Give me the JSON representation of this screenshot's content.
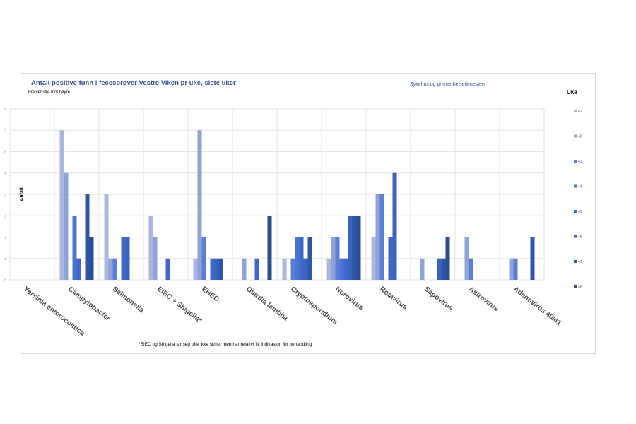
{
  "header": {
    "title": "Antall positive funn i fecesprøver Vestre Viken pr uke, siste uker",
    "subtitle": "Fra venstre mot høyre",
    "source": "Sykehus og primærhelsetjenesten"
  },
  "footnote": "*EIEC og Shigella lar seg ofte ikke skille, men har relativt lik indikasjon for behandling",
  "colors": [
    "#a9b7df",
    "#8fa3d8",
    "#5c7fd6",
    "#4a74d2",
    "#3f69c8",
    "#3a63bd",
    "#2e56a8",
    "#2b4d8f"
  ],
  "chart_data": {
    "type": "bar",
    "title": "Antall positive funn i fecesprøver Vestre Viken pr uke, siste uker",
    "ylabel": "Antall",
    "xlabel": "",
    "ylim": [
      0,
      8
    ],
    "yticks": [
      "0",
      "1",
      "2",
      "3",
      "4",
      "5",
      "6",
      "7",
      "8"
    ],
    "grid": true,
    "legend_title": "Uke",
    "legend_position": "right",
    "categories": [
      "Yersinia enterocolitica",
      "Campylobacter",
      "Salmonella",
      "EIEC + Shigella*",
      "EHEC",
      "Giardia lamblia",
      "Cryptosporidium",
      "Norovirus",
      "Rotavirus",
      "Sapovirus",
      "Astrovirus",
      "Adenovirus 40/41"
    ],
    "series": [
      {
        "name": "41",
        "values": [
          0,
          7,
          4,
          3,
          1,
          0,
          1,
          1,
          2,
          0,
          0,
          0
        ]
      },
      {
        "name": "42",
        "values": [
          0,
          5,
          1,
          2,
          7,
          1,
          0,
          2,
          4,
          1,
          2,
          1
        ]
      },
      {
        "name": "43",
        "values": [
          0,
          0,
          1,
          0,
          2,
          0,
          1,
          2,
          4,
          0,
          1,
          1
        ]
      },
      {
        "name": "44",
        "values": [
          0,
          3,
          0,
          0,
          0,
          0,
          2,
          1,
          0,
          0,
          0,
          0
        ]
      },
      {
        "name": "45",
        "values": [
          0,
          1,
          2,
          1,
          1,
          1,
          2,
          1,
          2,
          0,
          0,
          0
        ]
      },
      {
        "name": "46",
        "values": [
          0,
          0,
          2,
          0,
          1,
          0,
          1,
          3,
          5,
          1,
          0,
          0
        ]
      },
      {
        "name": "47",
        "values": [
          0,
          4,
          0,
          0,
          1,
          0,
          2,
          3,
          0,
          1,
          0,
          2
        ]
      },
      {
        "name": "48",
        "values": [
          0,
          2,
          0,
          0,
          0,
          3,
          0,
          3,
          0,
          2,
          0,
          0
        ]
      }
    ]
  }
}
